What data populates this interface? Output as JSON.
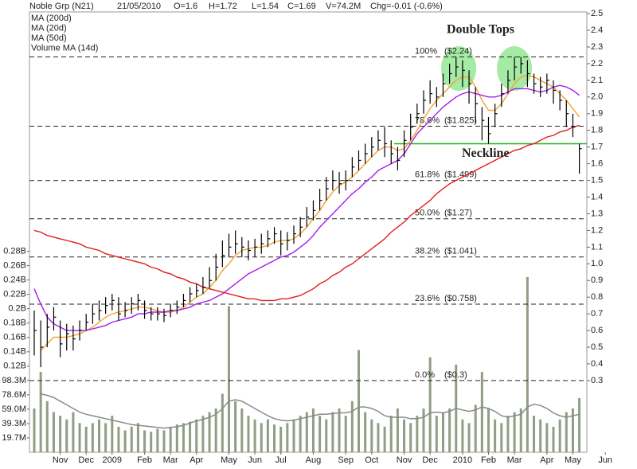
{
  "chart_data": {
    "type": "stock",
    "title": "Noble Grp (N21)",
    "header_fields": [
      "21/05/2010",
      "O=1.6",
      "H=1.72",
      "L=1.54",
      "C=1.69",
      "V=74.2M",
      "Chg=-0.01 (-0.6%)"
    ],
    "categories": [
      null,
      null,
      null,
      null,
      "Nov",
      null,
      null,
      null,
      "Dec",
      null,
      null,
      null,
      "2009",
      null,
      null,
      null,
      null,
      "Feb",
      null,
      null,
      null,
      "Mar",
      null,
      null,
      null,
      "Apr",
      null,
      null,
      null,
      null,
      "May",
      null,
      null,
      null,
      "Jun",
      null,
      null,
      null,
      "Jul",
      null,
      null,
      null,
      null,
      "Aug",
      null,
      null,
      null,
      null,
      "Sep",
      null,
      null,
      null,
      "Oct",
      null,
      null,
      null,
      null,
      "Nov",
      null,
      null,
      null,
      "Dec",
      null,
      null,
      null,
      null,
      "2010",
      null,
      null,
      null,
      "Feb",
      null,
      null,
      null,
      "Mar",
      null,
      null,
      null,
      null,
      "Apr",
      null,
      null,
      null,
      "May",
      null,
      null,
      null,
      null,
      "Jun"
    ],
    "ohlc": {
      "color": "#000000",
      "high": [
        0.72,
        0.66,
        0.7,
        0.74,
        0.66,
        0.64,
        0.63,
        0.66,
        0.7,
        0.76,
        0.78,
        0.8,
        0.82,
        0.8,
        0.77,
        0.8,
        0.82,
        0.78,
        0.74,
        0.74,
        0.73,
        0.76,
        0.78,
        0.82,
        0.86,
        0.88,
        0.92,
        0.98,
        1.06,
        1.14,
        1.18,
        1.2,
        1.16,
        1.14,
        1.15,
        1.18,
        1.2,
        1.22,
        1.2,
        1.19,
        1.23,
        1.28,
        1.34,
        1.38,
        1.45,
        1.52,
        1.56,
        1.55,
        1.56,
        1.64,
        1.68,
        1.72,
        1.76,
        1.8,
        1.82,
        1.74,
        1.7,
        1.8,
        1.9,
        1.96,
        2.04,
        2.1,
        2.06,
        2.14,
        2.2,
        2.24,
        2.22,
        2.16,
        2.06,
        1.94,
        1.88,
        1.96,
        2.08,
        2.16,
        2.24,
        2.24,
        2.22,
        2.14,
        2.12,
        2.14,
        2.1,
        2.04,
        1.98,
        1.9,
        1.72,
        null,
        null,
        null,
        null
      ],
      "low": [
        0.45,
        0.38,
        0.5,
        0.6,
        0.44,
        0.48,
        0.48,
        0.54,
        0.6,
        0.64,
        0.66,
        0.7,
        0.72,
        0.66,
        0.68,
        0.7,
        0.72,
        0.67,
        0.66,
        0.66,
        0.65,
        0.68,
        0.7,
        0.74,
        0.77,
        0.8,
        0.82,
        0.85,
        0.9,
        0.98,
        1.04,
        1.06,
        1.04,
        1.02,
        1.04,
        1.06,
        1.1,
        1.12,
        1.05,
        1.08,
        1.12,
        1.16,
        1.22,
        1.26,
        1.32,
        1.38,
        1.44,
        1.42,
        1.44,
        1.52,
        1.56,
        1.6,
        1.64,
        1.68,
        1.64,
        1.6,
        1.56,
        1.64,
        1.74,
        1.84,
        1.9,
        1.96,
        1.94,
        2.0,
        2.08,
        2.12,
        2.06,
        1.96,
        1.84,
        1.74,
        1.72,
        1.82,
        1.94,
        2.02,
        2.1,
        2.14,
        2.06,
        2.02,
        2.0,
        2.02,
        1.96,
        1.92,
        1.82,
        1.76,
        1.54,
        null,
        null,
        null,
        null
      ],
      "close": [
        0.6,
        0.5,
        0.62,
        0.68,
        0.52,
        0.58,
        0.55,
        0.6,
        0.65,
        0.7,
        0.72,
        0.75,
        0.78,
        0.7,
        0.72,
        0.76,
        0.78,
        0.72,
        0.7,
        0.7,
        0.69,
        0.72,
        0.74,
        0.78,
        0.82,
        0.84,
        0.86,
        0.9,
        0.98,
        1.05,
        1.1,
        1.12,
        1.1,
        1.08,
        1.1,
        1.12,
        1.15,
        1.18,
        1.12,
        1.14,
        1.18,
        1.22,
        1.28,
        1.32,
        1.38,
        1.45,
        1.5,
        1.48,
        1.5,
        1.58,
        1.62,
        1.66,
        1.7,
        1.74,
        1.72,
        1.66,
        1.62,
        1.74,
        1.82,
        1.9,
        1.98,
        2.02,
        2.0,
        2.08,
        2.14,
        2.18,
        2.16,
        2.08,
        1.96,
        1.86,
        1.78,
        1.9,
        2.02,
        2.1,
        2.18,
        2.2,
        2.14,
        2.08,
        2.06,
        2.1,
        2.04,
        1.98,
        1.9,
        1.82,
        1.69,
        null,
        null,
        null,
        null
      ]
    },
    "volume": {
      "color": "#8f9e84",
      "axis": "y2",
      "values": [
        60000000,
        110000000,
        70000000,
        55000000,
        50000000,
        45000000,
        55000000,
        40000000,
        35000000,
        40000000,
        45000000,
        40000000,
        50000000,
        35000000,
        30000000,
        35000000,
        40000000,
        30000000,
        28000000,
        32000000,
        30000000,
        35000000,
        38000000,
        40000000,
        42000000,
        45000000,
        50000000,
        55000000,
        60000000,
        80000000,
        200000000,
        70000000,
        60000000,
        50000000,
        45000000,
        40000000,
        45000000,
        38000000,
        35000000,
        40000000,
        45000000,
        50000000,
        55000000,
        60000000,
        50000000,
        45000000,
        55000000,
        60000000,
        50000000,
        70000000,
        140000000,
        55000000,
        45000000,
        40000000,
        35000000,
        50000000,
        60000000,
        45000000,
        40000000,
        50000000,
        60000000,
        130000000,
        50000000,
        55000000,
        60000000,
        120000000,
        45000000,
        40000000,
        65000000,
        110000000,
        60000000,
        45000000,
        40000000,
        50000000,
        55000000,
        60000000,
        240000000,
        50000000,
        45000000,
        40000000,
        35000000,
        45000000,
        55000000,
        60000000,
        74200000,
        null,
        null,
        null,
        null
      ]
    },
    "series": [
      {
        "name": "MA (200d)",
        "color": "#e31b1b",
        "values": [
          1.2,
          1.19,
          1.17,
          1.16,
          1.15,
          1.14,
          1.13,
          1.12,
          1.1,
          1.09,
          1.08,
          1.06,
          1.05,
          1.04,
          1.03,
          1.02,
          1.01,
          1.0,
          0.98,
          0.97,
          0.95,
          0.94,
          0.92,
          0.91,
          0.89,
          0.88,
          0.86,
          0.85,
          0.84,
          0.83,
          0.82,
          0.81,
          0.8,
          0.79,
          0.79,
          0.78,
          0.78,
          0.78,
          0.79,
          0.79,
          0.8,
          0.81,
          0.83,
          0.85,
          0.88,
          0.9,
          0.93,
          0.95,
          0.98,
          1.0,
          1.03,
          1.06,
          1.09,
          1.12,
          1.15,
          1.19,
          1.22,
          1.25,
          1.29,
          1.32,
          1.35,
          1.38,
          1.42,
          1.45,
          1.48,
          1.5,
          1.52,
          1.54,
          1.56,
          1.58,
          1.6,
          1.62,
          1.64,
          1.66,
          1.68,
          1.69,
          1.71,
          1.72,
          1.74,
          1.76,
          1.77,
          1.79,
          1.8,
          1.82,
          1.83,
          null,
          null,
          null,
          null
        ]
      },
      {
        "name": "MA (20d)",
        "color": "#f2a230",
        "values": [
          null,
          0.48,
          0.52,
          0.56,
          0.56,
          0.56,
          0.57,
          0.58,
          0.6,
          0.62,
          0.65,
          0.68,
          0.7,
          0.71,
          0.72,
          0.73,
          0.74,
          0.74,
          0.73,
          0.72,
          0.71,
          0.71,
          0.72,
          0.74,
          0.77,
          0.8,
          0.82,
          0.86,
          0.9,
          0.96,
          1.0,
          1.05,
          1.08,
          1.09,
          1.1,
          1.1,
          1.11,
          1.13,
          1.14,
          1.14,
          1.15,
          1.18,
          1.22,
          1.27,
          1.32,
          1.38,
          1.43,
          1.47,
          1.49,
          1.52,
          1.56,
          1.6,
          1.64,
          1.68,
          1.7,
          1.7,
          1.68,
          1.69,
          1.74,
          1.8,
          1.87,
          1.93,
          1.98,
          2.02,
          2.06,
          2.1,
          2.12,
          2.12,
          2.06,
          1.98,
          1.92,
          1.92,
          1.96,
          2.02,
          2.08,
          2.12,
          2.13,
          2.12,
          2.1,
          2.08,
          2.06,
          2.02,
          1.98,
          1.93,
          1.88,
          null,
          null,
          null,
          null
        ]
      },
      {
        "name": "MA (50d)",
        "color": "#a51ee8",
        "values": [
          0.85,
          0.76,
          0.68,
          0.64,
          0.62,
          0.6,
          0.6,
          0.6,
          0.6,
          0.61,
          0.62,
          0.63,
          0.65,
          0.66,
          0.67,
          0.68,
          0.7,
          0.7,
          0.71,
          0.71,
          0.71,
          0.72,
          0.72,
          0.73,
          0.74,
          0.76,
          0.77,
          0.78,
          0.8,
          0.82,
          0.85,
          0.88,
          0.91,
          0.94,
          0.96,
          0.98,
          1.0,
          1.02,
          1.04,
          1.05,
          1.07,
          1.1,
          1.13,
          1.17,
          1.22,
          1.26,
          1.3,
          1.34,
          1.38,
          1.42,
          1.45,
          1.49,
          1.52,
          1.56,
          1.58,
          1.6,
          1.62,
          1.66,
          1.72,
          1.78,
          1.82,
          1.86,
          1.9,
          1.94,
          1.97,
          2.0,
          2.02,
          2.03,
          2.02,
          2.01,
          2.0,
          2.0,
          2.01,
          2.03,
          2.05,
          2.05,
          2.05,
          2.04,
          2.03,
          2.04,
          2.06,
          2.07,
          2.06,
          2.04,
          2.01,
          null,
          null,
          null,
          null
        ]
      },
      {
        "name": "Volume MA (14d)",
        "color": "#8a8a8a",
        "axis": "y2",
        "values": [
          null,
          80000000,
          78000000,
          75000000,
          70000000,
          65000000,
          60000000,
          55000000,
          52000000,
          50000000,
          48000000,
          46000000,
          44000000,
          42000000,
          40000000,
          38000000,
          37000000,
          36000000,
          35000000,
          34000000,
          33000000,
          34000000,
          35000000,
          37000000,
          40000000,
          43000000,
          45000000,
          48000000,
          52000000,
          60000000,
          70000000,
          72000000,
          70000000,
          65000000,
          60000000,
          55000000,
          50000000,
          46000000,
          44000000,
          43000000,
          44000000,
          46000000,
          48000000,
          50000000,
          52000000,
          52000000,
          53000000,
          54000000,
          54000000,
          56000000,
          62000000,
          62000000,
          60000000,
          56000000,
          50000000,
          48000000,
          48000000,
          48000000,
          46000000,
          46000000,
          48000000,
          54000000,
          55000000,
          54000000,
          56000000,
          60000000,
          58000000,
          56000000,
          58000000,
          62000000,
          60000000,
          56000000,
          50000000,
          48000000,
          50000000,
          52000000,
          62000000,
          66000000,
          64000000,
          60000000,
          54000000,
          50000000,
          48000000,
          50000000,
          52000000,
          null,
          null,
          null,
          null
        ]
      }
    ],
    "ylim": [
      -0.13,
      2.51
    ],
    "yticks": [
      0.3,
      0.4,
      0.5,
      0.6,
      0.7,
      0.8,
      0.9,
      {
        "value": 1,
        "label": "1.0"
      },
      1.1,
      1.2,
      1.3,
      1.4,
      1.5,
      1.6,
      1.7,
      1.8,
      1.9,
      {
        "value": 2,
        "label": "2.0"
      },
      2.1,
      2.2,
      2.3,
      2.4,
      2.5
    ],
    "y2lim": [
      0,
      603000000
    ],
    "y2ticks": [
      {
        "value": 19660000,
        "label": "19.7M"
      },
      {
        "value": 39320000,
        "label": "39.3M"
      },
      {
        "value": 58980000,
        "label": "59.0M"
      },
      {
        "value": 78640000,
        "label": "78.6M"
      },
      {
        "value": 98300000,
        "label": "98.3M"
      },
      {
        "value": 117960000,
        "label": "0.12B"
      },
      {
        "value": 137620000,
        "label": "0.14B"
      },
      {
        "value": 157280000,
        "label": "0.16B"
      },
      {
        "value": 176940000,
        "label": "0.18B"
      },
      {
        "value": 196600000,
        "label": "0.2B"
      },
      {
        "value": 216260000,
        "label": "0.22B"
      },
      {
        "value": 235920000,
        "label": "0.24B"
      },
      {
        "value": 255580000,
        "label": "0.26B"
      },
      {
        "value": 275240000,
        "label": "0.28B"
      }
    ],
    "fib_levels": [
      {
        "label": "100%",
        "price_label": "($2.24)",
        "value": 2.24
      },
      {
        "label": "78.6%",
        "price_label": "($1.825)",
        "value": 1.825
      },
      {
        "label": "61.8%",
        "price_label": "($1.499)",
        "value": 1.499
      },
      {
        "label": "50.0%",
        "price_label": "($1.27)",
        "value": 1.27
      },
      {
        "label": "38.2%",
        "price_label": "($1.041)",
        "value": 1.041
      },
      {
        "label": "23.6%",
        "price_label": "($0.758)",
        "value": 0.758
      },
      {
        "label": "0.0%",
        "price_label": "($0.3)",
        "value": 0.3
      }
    ],
    "annotations": [
      {
        "text": "Double Tops",
        "color": "#22b022"
      },
      {
        "text": "Neckline",
        "value": 1.72,
        "color": "#22b022"
      }
    ],
    "legend": "upper left",
    "grid": false
  }
}
